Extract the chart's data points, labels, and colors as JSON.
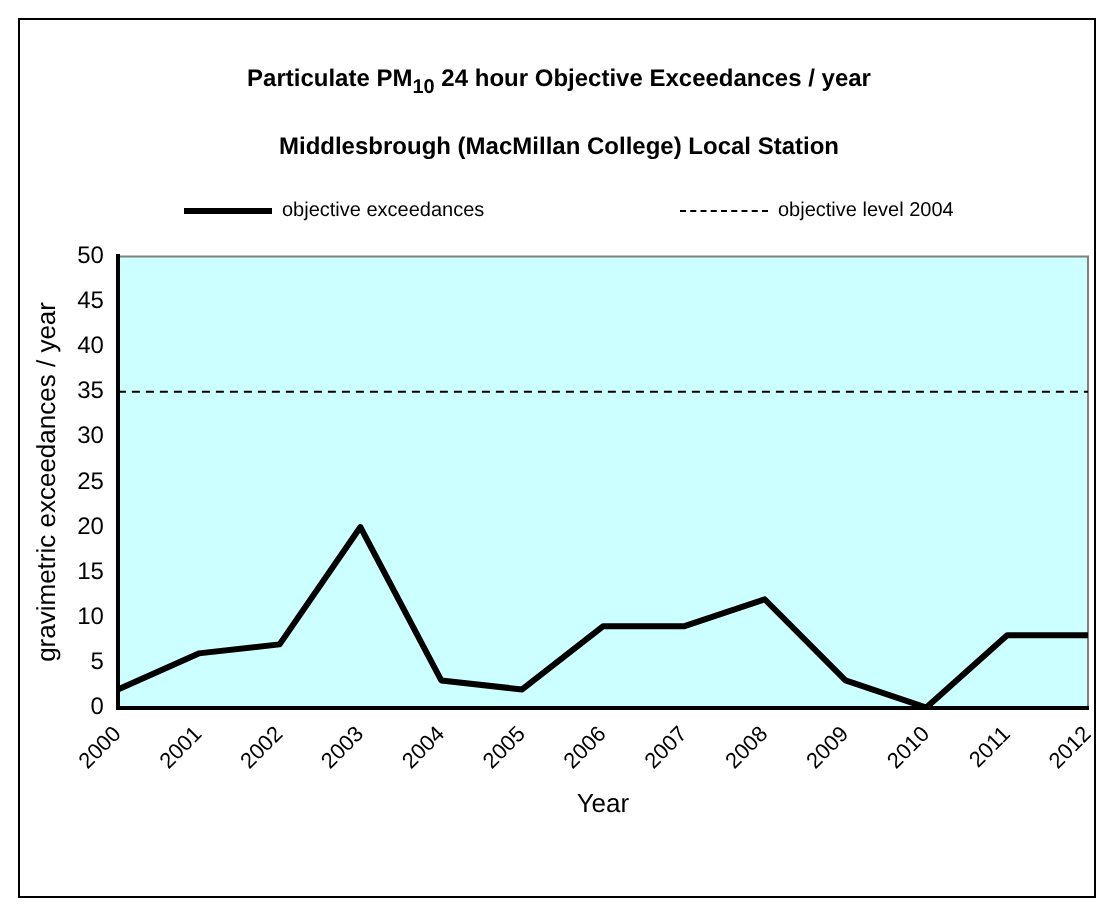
{
  "chart_data": {
    "type": "line",
    "title": "Particulate PM$_{10}$ 24 hour Objective Exceedances / year",
    "subtitle": "Middlesbrough  (MacMillan College) Local Station",
    "xlabel": "Year",
    "ylabel": "gravimetric exceedances / year",
    "categories": [
      "2000",
      "2001",
      "2002",
      "2003",
      "2004",
      "2005",
      "2006",
      "2007",
      "2008",
      "2009",
      "2010",
      "2011",
      "2012"
    ],
    "series": [
      {
        "name": "objective exceedances",
        "color": "#000000",
        "values": [
          2,
          6,
          7,
          20,
          3,
          2,
          9,
          9,
          12,
          3,
          0,
          8,
          8
        ]
      }
    ],
    "ref_lines": [
      {
        "axis": "y",
        "value": 35,
        "label": "objective level 2004",
        "color": "#000000",
        "line_style": "dashed"
      }
    ],
    "ylim": [
      0,
      50
    ],
    "yticks": [
      0,
      5,
      10,
      15,
      20,
      25,
      30,
      35,
      40,
      45,
      50
    ],
    "grid": false,
    "legend": "top",
    "marker": "none",
    "line_style": "solid"
  }
}
